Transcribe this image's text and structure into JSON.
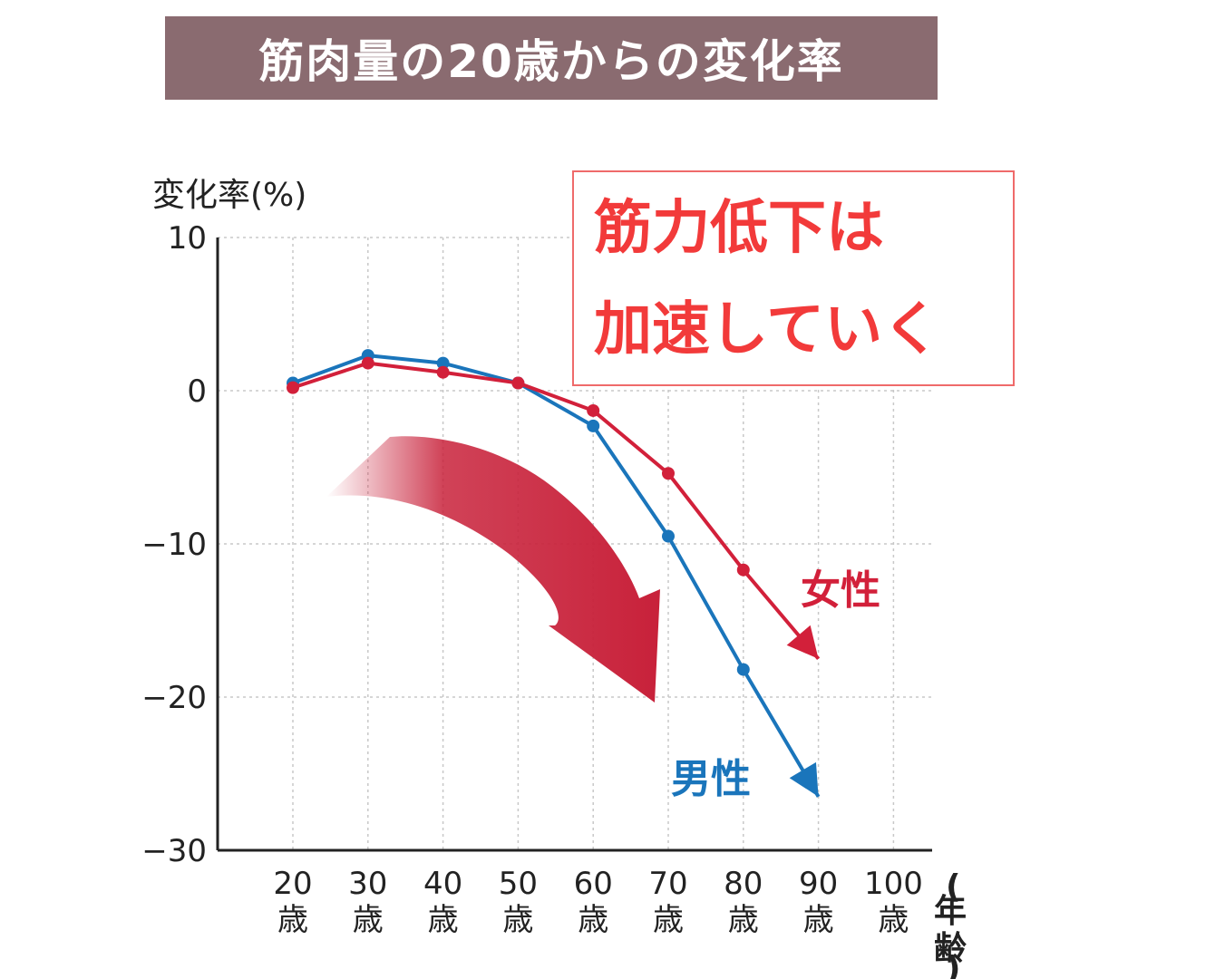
{
  "title": "筋肉量の20歳からの変化率",
  "note": {
    "line1": "筋力低下は",
    "line2": "加速していく"
  },
  "chart_data": {
    "type": "line",
    "ylabel": "変化率(%)",
    "xunit": "(年齢)",
    "ylim": [
      -30,
      10
    ],
    "yticks": [
      "10",
      "0",
      "−10",
      "−20",
      "−30"
    ],
    "ytick_values": [
      10,
      0,
      -10,
      -20,
      -30
    ],
    "x": [
      20,
      30,
      40,
      50,
      60,
      70,
      80,
      90,
      100
    ],
    "xtick_numbers": [
      "20",
      "30",
      "40",
      "50",
      "60",
      "70",
      "80",
      "90",
      "100"
    ],
    "xtick_suffix": "歳",
    "grid": true,
    "series": [
      {
        "name": "女性",
        "color": "#d2203a",
        "x": [
          20,
          30,
          40,
          50,
          60,
          70,
          80
        ],
        "values": [
          0.2,
          1.8,
          1.2,
          0.5,
          -1.3,
          -5.4,
          -11.7
        ],
        "arrow_to": [
          90,
          -17.5
        ]
      },
      {
        "name": "男性",
        "color": "#1a75bb",
        "x": [
          20,
          30,
          40,
          50,
          60,
          70,
          80
        ],
        "values": [
          0.5,
          2.3,
          1.8,
          0.5,
          -2.3,
          -9.5,
          -18.2
        ],
        "arrow_to": [
          90,
          -26.5
        ]
      }
    ]
  },
  "colors": {
    "banner": "#8a6b70",
    "note_text": "#f23a3a",
    "note_border": "#ef6a6a",
    "big_arrow": "#c8213a"
  }
}
